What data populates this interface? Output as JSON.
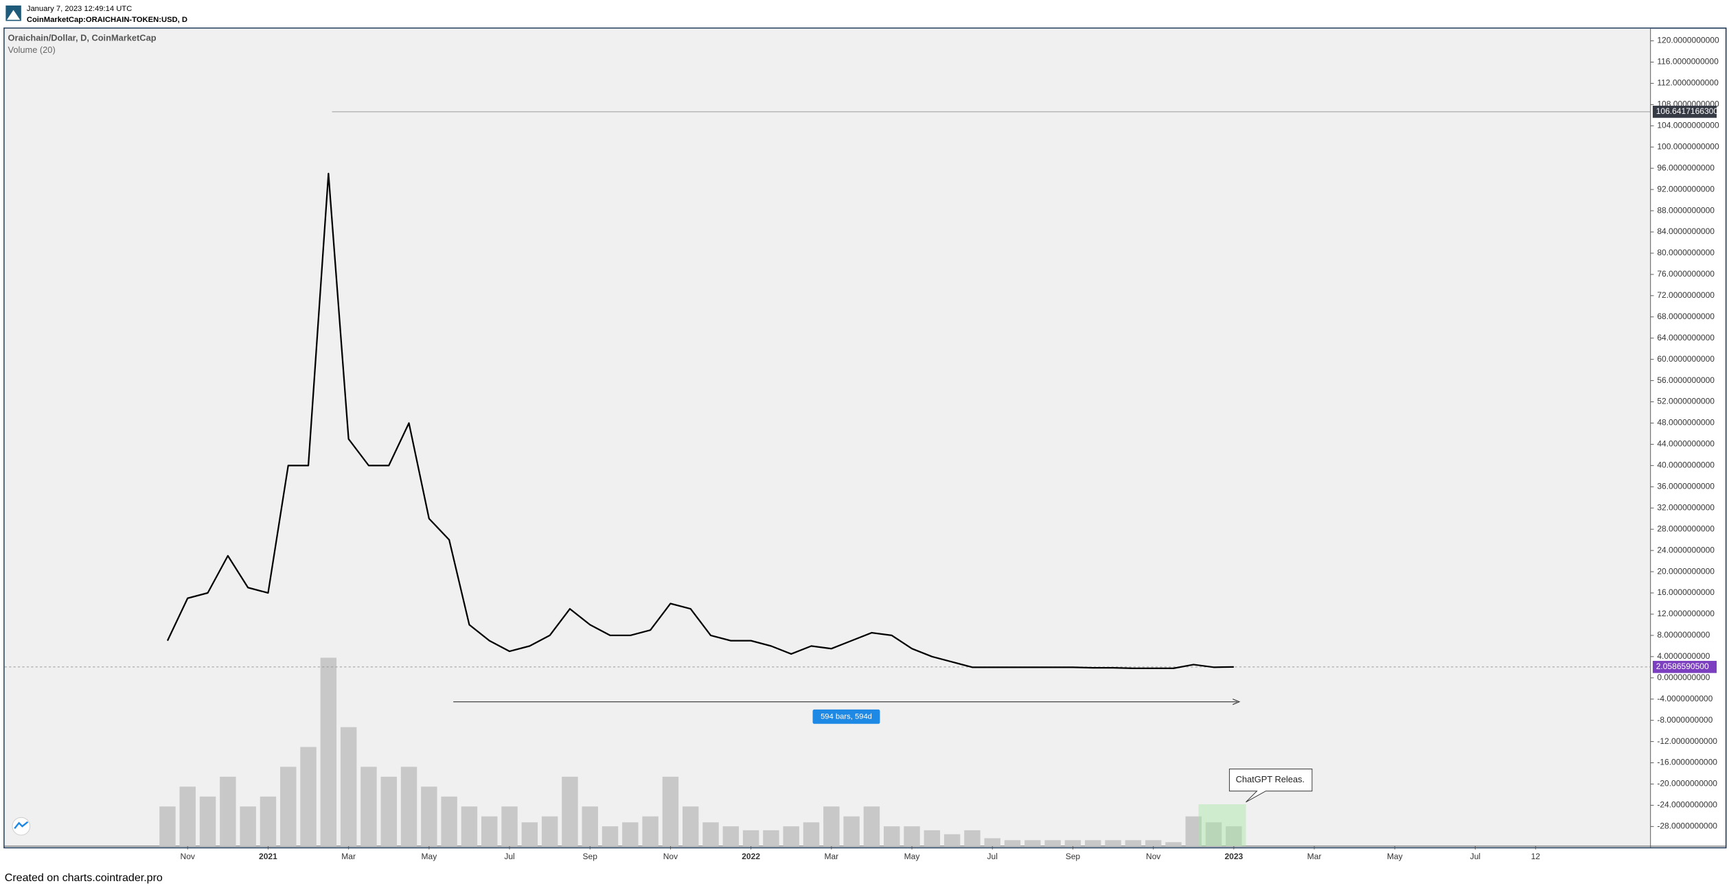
{
  "header": {
    "datetime": "January 7, 2023 12:49:14 UTC",
    "symbol": "CoinMarketCap:ORAICHAIN-TOKEN:USD, D"
  },
  "footer": "Created on charts.cointrader.pro",
  "chart_data": {
    "type": "line",
    "title": "Oraichain/Dollar, D, CoinMarketCap",
    "subtitle": "Volume (20)",
    "color": "#000000",
    "categories": [
      null,
      "Nov",
      null,
      null,
      null,
      "2021",
      null,
      null,
      null,
      "Mar",
      null,
      null,
      null,
      "May",
      null,
      null,
      null,
      "Jul",
      null,
      null,
      null,
      "Sep",
      null,
      null,
      null,
      "Nov",
      null,
      null,
      null,
      "2022",
      null,
      null,
      null,
      "Mar",
      null,
      null,
      null,
      "May",
      null,
      null,
      null,
      "Jul",
      null,
      null,
      null,
      "Sep",
      null,
      null,
      null,
      "Nov",
      null,
      null,
      null,
      "2023",
      null,
      null,
      null,
      "Mar",
      null,
      null,
      null,
      "May",
      null,
      null,
      null,
      "Jul",
      null,
      null,
      "12",
      null,
      null,
      null,
      null,
      null
    ],
    "values": [
      7,
      15,
      16,
      23,
      17,
      16,
      40,
      40,
      95,
      45,
      40,
      40,
      48,
      30,
      26,
      10,
      7,
      5,
      6,
      8,
      13,
      10,
      8,
      8,
      9,
      14,
      13,
      8,
      7,
      7,
      6,
      4.5,
      6,
      5.5,
      7,
      8.5,
      8,
      5.5,
      4,
      3,
      2,
      2,
      2,
      2,
      2,
      2,
      1.9,
      1.9,
      1.8,
      1.8,
      1.8,
      2.5,
      2,
      2.06,
      null,
      null,
      null,
      null,
      null,
      null,
      null,
      null,
      null,
      null,
      null,
      null,
      null,
      null,
      null,
      null,
      null,
      null,
      null,
      null
    ],
    "volume": [
      20,
      30,
      25,
      35,
      20,
      25,
      40,
      50,
      95,
      60,
      40,
      35,
      40,
      30,
      25,
      20,
      15,
      20,
      12,
      15,
      35,
      20,
      10,
      12,
      15,
      35,
      20,
      12,
      10,
      8,
      8,
      10,
      12,
      20,
      15,
      20,
      10,
      10,
      8,
      6,
      8,
      4,
      3,
      3,
      3,
      3,
      3,
      3,
      3,
      3,
      2,
      15,
      12,
      10,
      null,
      null,
      null,
      null,
      null,
      null,
      null,
      null,
      null,
      null,
      null,
      null,
      null,
      null,
      null,
      null,
      null,
      null,
      null,
      null
    ],
    "volume_color": "#c8c8c8",
    "ylim": [
      -31.7,
      122.3
    ],
    "yticks": [
      {
        "value": -28,
        "label": "-28.0000000000"
      },
      {
        "value": -24,
        "label": "-24.0000000000"
      },
      {
        "value": -20,
        "label": "-20.0000000000"
      },
      {
        "value": -16,
        "label": "-16.0000000000"
      },
      {
        "value": -12,
        "label": "-12.0000000000"
      },
      {
        "value": -8,
        "label": "-8.0000000000"
      },
      {
        "value": -4,
        "label": "-4.0000000000"
      },
      {
        "value": 0,
        "label": "0.0000000000"
      },
      {
        "value": 4,
        "label": "4.0000000000"
      },
      {
        "value": 8,
        "label": "8.0000000000"
      },
      {
        "value": 12,
        "label": "12.0000000000"
      },
      {
        "value": 16,
        "label": "16.0000000000"
      },
      {
        "value": 20,
        "label": "20.0000000000"
      },
      {
        "value": 24,
        "label": "24.0000000000"
      },
      {
        "value": 28,
        "label": "28.0000000000"
      },
      {
        "value": 32,
        "label": "32.0000000000"
      },
      {
        "value": 36,
        "label": "36.0000000000"
      },
      {
        "value": 40,
        "label": "40.0000000000"
      },
      {
        "value": 44,
        "label": "44.0000000000"
      },
      {
        "value": 48,
        "label": "48.0000000000"
      },
      {
        "value": 52,
        "label": "52.0000000000"
      },
      {
        "value": 56,
        "label": "56.0000000000"
      },
      {
        "value": 60,
        "label": "60.0000000000"
      },
      {
        "value": 64,
        "label": "64.0000000000"
      },
      {
        "value": 68,
        "label": "68.0000000000"
      },
      {
        "value": 72,
        "label": "72.0000000000"
      },
      {
        "value": 76,
        "label": "76.0000000000"
      },
      {
        "value": 80,
        "label": "80.0000000000"
      },
      {
        "value": 84,
        "label": "84.0000000000"
      },
      {
        "value": 88,
        "label": "88.0000000000"
      },
      {
        "value": 92,
        "label": "92.0000000000"
      },
      {
        "value": 96,
        "label": "96.0000000000"
      },
      {
        "value": 100,
        "label": "100.0000000000"
      },
      {
        "value": 104,
        "label": "104.0000000000"
      },
      {
        "value": 108,
        "label": "108.0000000000"
      },
      {
        "value": 112,
        "label": "112.0000000000"
      },
      {
        "value": 116,
        "label": "116.0000000000"
      },
      {
        "value": 120,
        "label": "120.0000000000"
      }
    ],
    "price_labels": [
      {
        "value": 106.64171663,
        "label": "106.6417166300",
        "color": "#363a45"
      },
      {
        "value": 2.05865905,
        "label": "2.0586590500",
        "color": "#7b3fbf"
      }
    ],
    "annotations": [
      "594 bars, 594d",
      "ChatGPT Releas."
    ]
  }
}
